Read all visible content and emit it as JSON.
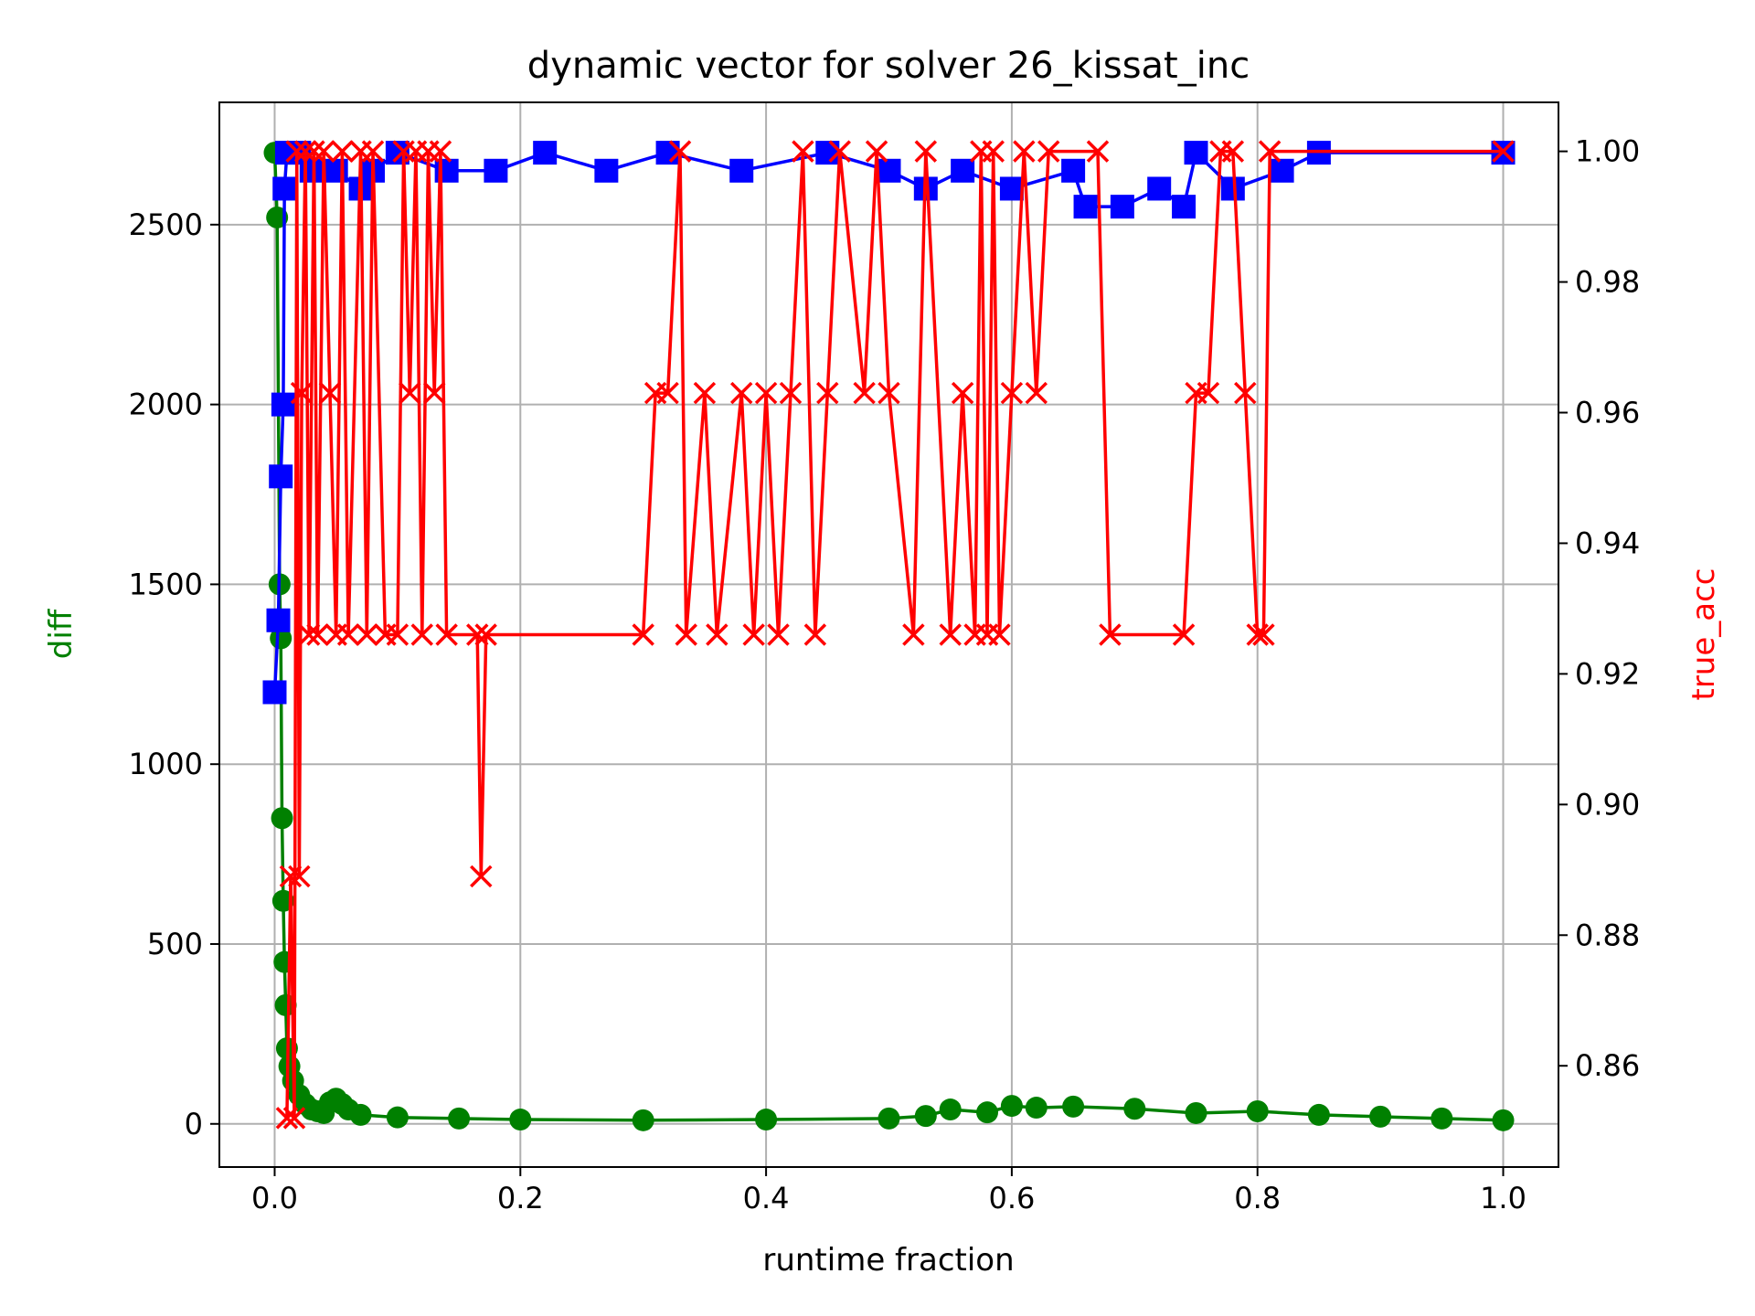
{
  "chart_data": {
    "type": "line",
    "title": "dynamic vector for solver 26_kissat_inc",
    "xlabel": "runtime fraction",
    "ylabel_left": "diff",
    "ylabel_right": "true_acc",
    "xlim": [
      -0.045,
      1.045
    ],
    "ylim_left": [
      -120,
      2840
    ],
    "ylim_right": [
      0.8445,
      1.0075
    ],
    "x_ticks": [
      "0.0",
      "0.2",
      "0.4",
      "0.6",
      "0.8",
      "1.0"
    ],
    "y_left_ticks": [
      "0",
      "500",
      "1000",
      "1500",
      "2000",
      "2500"
    ],
    "y_right_ticks": [
      "0.86",
      "0.88",
      "0.90",
      "0.92",
      "0.94",
      "0.96",
      "0.98",
      "1.00"
    ],
    "grid": true,
    "colors": {
      "diff": "#008000",
      "blue_series": "#0000ff",
      "true_acc": "#ff0000"
    },
    "diff_series": {
      "axis": "left",
      "marker": "circle",
      "points": [
        [
          0.0,
          2700
        ],
        [
          0.002,
          2520
        ],
        [
          0.004,
          1500
        ],
        [
          0.005,
          1350
        ],
        [
          0.006,
          850
        ],
        [
          0.007,
          620
        ],
        [
          0.008,
          450
        ],
        [
          0.009,
          330
        ],
        [
          0.01,
          210
        ],
        [
          0.012,
          160
        ],
        [
          0.015,
          120
        ],
        [
          0.02,
          80
        ],
        [
          0.025,
          55
        ],
        [
          0.03,
          40
        ],
        [
          0.035,
          35
        ],
        [
          0.04,
          30
        ],
        [
          0.045,
          60
        ],
        [
          0.05,
          70
        ],
        [
          0.055,
          55
        ],
        [
          0.06,
          40
        ],
        [
          0.07,
          25
        ],
        [
          0.1,
          18
        ],
        [
          0.15,
          15
        ],
        [
          0.2,
          12
        ],
        [
          0.3,
          10
        ],
        [
          0.4,
          12
        ],
        [
          0.5,
          15
        ],
        [
          0.53,
          22
        ],
        [
          0.55,
          40
        ],
        [
          0.58,
          32
        ],
        [
          0.6,
          50
        ],
        [
          0.62,
          45
        ],
        [
          0.65,
          48
        ],
        [
          0.7,
          42
        ],
        [
          0.75,
          30
        ],
        [
          0.8,
          35
        ],
        [
          0.85,
          25
        ],
        [
          0.9,
          20
        ],
        [
          0.95,
          15
        ],
        [
          1.0,
          10
        ]
      ]
    },
    "blue_series": {
      "axis": "left",
      "marker": "square",
      "points": [
        [
          0.0,
          1200
        ],
        [
          0.003,
          1400
        ],
        [
          0.005,
          1800
        ],
        [
          0.007,
          2000
        ],
        [
          0.008,
          2600
        ],
        [
          0.01,
          2700
        ],
        [
          0.02,
          2700
        ],
        [
          0.03,
          2650
        ],
        [
          0.05,
          2650
        ],
        [
          0.07,
          2600
        ],
        [
          0.08,
          2650
        ],
        [
          0.1,
          2700
        ],
        [
          0.14,
          2650
        ],
        [
          0.18,
          2650
        ],
        [
          0.22,
          2700
        ],
        [
          0.27,
          2650
        ],
        [
          0.32,
          2700
        ],
        [
          0.38,
          2650
        ],
        [
          0.45,
          2700
        ],
        [
          0.5,
          2650
        ],
        [
          0.53,
          2600
        ],
        [
          0.56,
          2650
        ],
        [
          0.6,
          2600
        ],
        [
          0.65,
          2650
        ],
        [
          0.66,
          2550
        ],
        [
          0.69,
          2550
        ],
        [
          0.72,
          2600
        ],
        [
          0.74,
          2550
        ],
        [
          0.75,
          2700
        ],
        [
          0.78,
          2600
        ],
        [
          0.82,
          2650
        ],
        [
          0.85,
          2700
        ],
        [
          1.0,
          2700
        ]
      ]
    },
    "true_acc_series": {
      "axis": "right",
      "marker": "x",
      "points": [
        [
          0.01,
          0.852
        ],
        [
          0.013,
          0.889
        ],
        [
          0.016,
          0.852
        ],
        [
          0.018,
          1.0
        ],
        [
          0.02,
          0.889
        ],
        [
          0.022,
          0.963
        ],
        [
          0.025,
          1.0
        ],
        [
          0.028,
          0.926
        ],
        [
          0.032,
          1.0
        ],
        [
          0.035,
          0.926
        ],
        [
          0.04,
          1.0
        ],
        [
          0.045,
          0.963
        ],
        [
          0.05,
          0.926
        ],
        [
          0.055,
          1.0
        ],
        [
          0.06,
          0.926
        ],
        [
          0.07,
          1.0
        ],
        [
          0.075,
          0.926
        ],
        [
          0.08,
          1.0
        ],
        [
          0.09,
          0.926
        ],
        [
          0.1,
          0.926
        ],
        [
          0.105,
          1.0
        ],
        [
          0.11,
          0.963
        ],
        [
          0.115,
          1.0
        ],
        [
          0.12,
          0.926
        ],
        [
          0.125,
          1.0
        ],
        [
          0.13,
          0.963
        ],
        [
          0.135,
          1.0
        ],
        [
          0.14,
          0.926
        ],
        [
          0.165,
          0.926
        ],
        [
          0.168,
          0.889
        ],
        [
          0.172,
          0.926
        ],
        [
          0.3,
          0.926
        ],
        [
          0.31,
          0.963
        ],
        [
          0.32,
          0.963
        ],
        [
          0.33,
          1.0
        ],
        [
          0.335,
          0.926
        ],
        [
          0.35,
          0.963
        ],
        [
          0.36,
          0.926
        ],
        [
          0.38,
          0.963
        ],
        [
          0.39,
          0.926
        ],
        [
          0.4,
          0.963
        ],
        [
          0.41,
          0.926
        ],
        [
          0.42,
          0.963
        ],
        [
          0.43,
          1.0
        ],
        [
          0.44,
          0.926
        ],
        [
          0.45,
          0.963
        ],
        [
          0.46,
          1.0
        ],
        [
          0.48,
          0.963
        ],
        [
          0.49,
          1.0
        ],
        [
          0.5,
          0.963
        ],
        [
          0.52,
          0.926
        ],
        [
          0.53,
          1.0
        ],
        [
          0.55,
          0.926
        ],
        [
          0.56,
          0.963
        ],
        [
          0.57,
          0.926
        ],
        [
          0.575,
          1.0
        ],
        [
          0.58,
          0.926
        ],
        [
          0.585,
          1.0
        ],
        [
          0.59,
          0.926
        ],
        [
          0.6,
          0.963
        ],
        [
          0.61,
          1.0
        ],
        [
          0.62,
          0.963
        ],
        [
          0.63,
          1.0
        ],
        [
          0.67,
          1.0
        ],
        [
          0.68,
          0.926
        ],
        [
          0.74,
          0.926
        ],
        [
          0.75,
          0.963
        ],
        [
          0.76,
          0.963
        ],
        [
          0.77,
          1.0
        ],
        [
          0.78,
          1.0
        ],
        [
          0.79,
          0.963
        ],
        [
          0.8,
          0.926
        ],
        [
          0.805,
          0.926
        ],
        [
          0.81,
          1.0
        ],
        [
          1.0,
          1.0
        ]
      ]
    }
  }
}
